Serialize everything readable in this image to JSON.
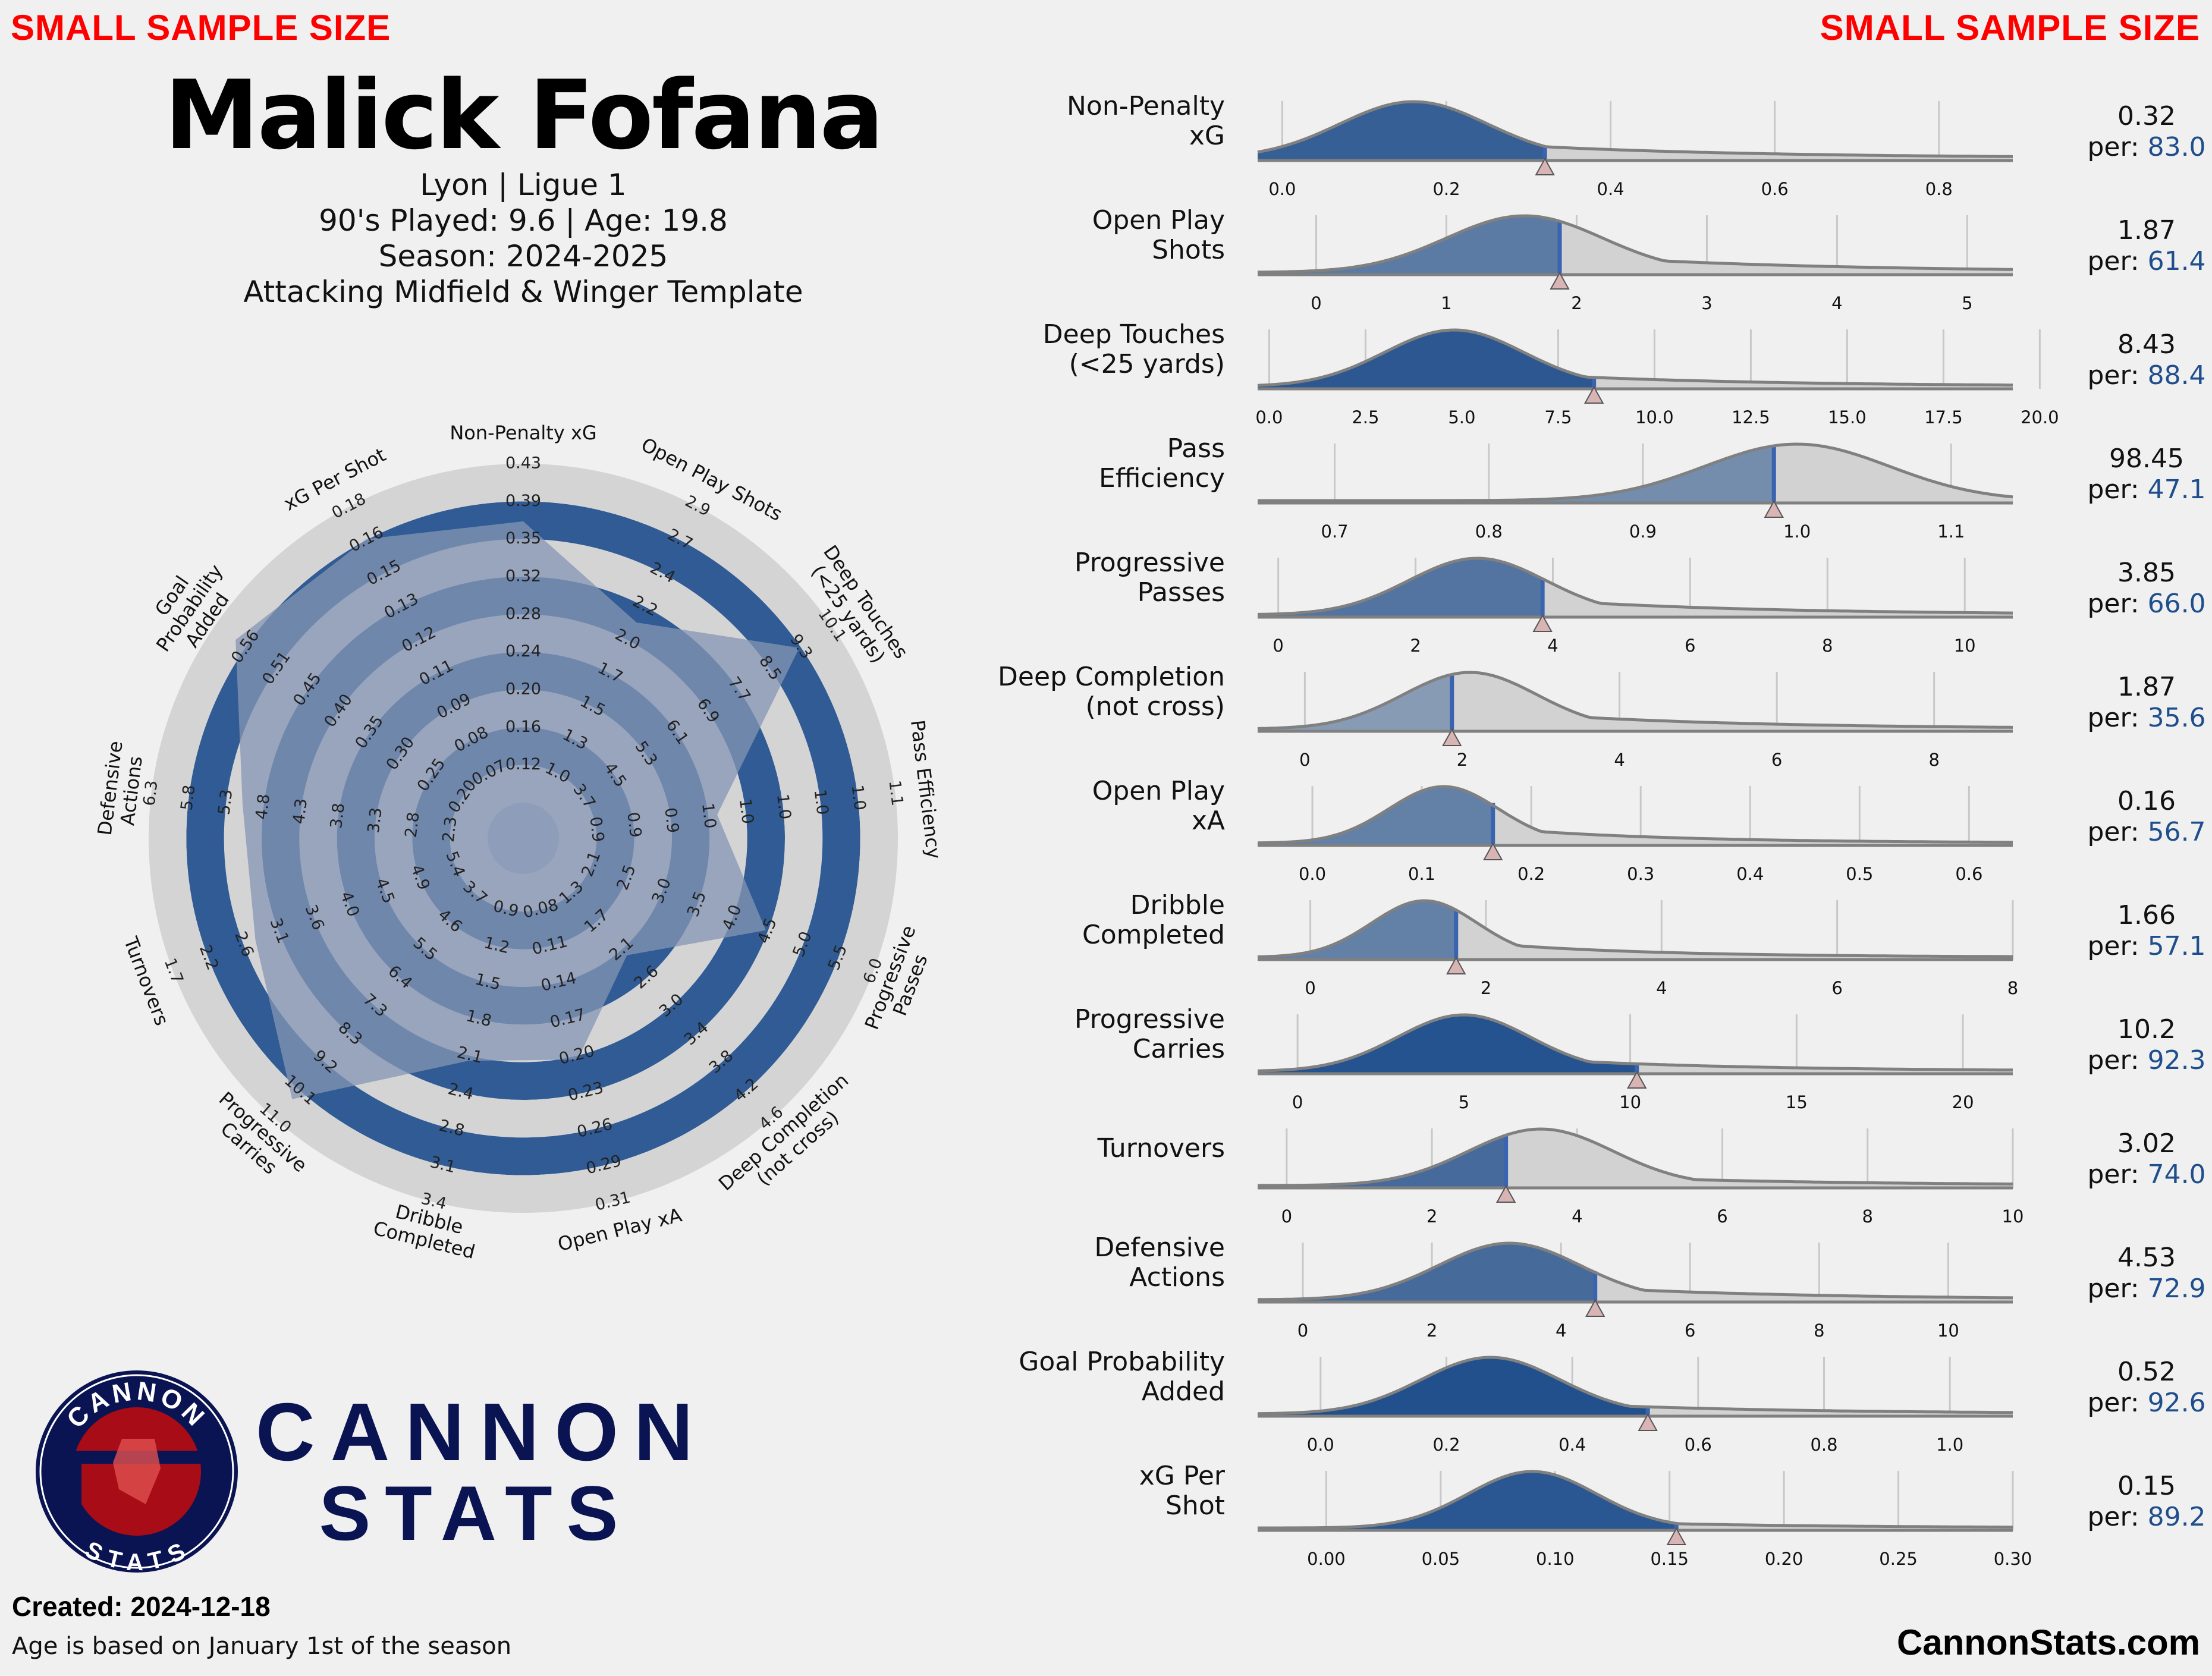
{
  "header": {
    "warning_left": "SMALL SAMPLE SIZE",
    "warning_right": "SMALL SAMPLE SIZE",
    "player_name": "Malick Fofana",
    "team_line": "Lyon | Ligue 1",
    "played_line": "90's Played: 9.6 | Age: 19.8",
    "season_line": "Season: 2024-2025",
    "template_line": "Attacking Midfield & Winger Template"
  },
  "footer": {
    "created": "Created: 2024-12-18",
    "age_note": "Age is based on January 1st of the season",
    "site": "CannonStats.com",
    "brand_line1": "CANNON",
    "brand_line2": "STATS",
    "logo_top": "CANNON",
    "logo_bottom": "STATS"
  },
  "colors": {
    "background": "#f0f0f0",
    "accent_blue": "#1f4e8c",
    "shade_blue": "#3465a4",
    "grey_ring": "#d4d4d4",
    "warning": "#ff0000",
    "brand": "#0b1452",
    "logo_red": "#a80c16"
  },
  "chart_data": [
    {
      "type": "radar",
      "axes": [
        {
          "label": "Non-Penalty xG",
          "ticks": [
            "0.12",
            "0.16",
            "0.20",
            "0.24",
            "0.28",
            "0.32",
            "0.35",
            "0.39",
            "0.43"
          ],
          "percentile": 83.0
        },
        {
          "label": "Open Play Shots",
          "ticks": [
            "1.0",
            "1.3",
            "1.5",
            "1.7",
            "2.0",
            "2.2",
            "2.4",
            "2.7",
            "2.9"
          ],
          "percentile": 61.4
        },
        {
          "label": "Deep Touches\n(<25 yards)",
          "ticks": [
            "3.7",
            "4.5",
            "5.3",
            "6.1",
            "6.9",
            "7.7",
            "8.5",
            "9.3",
            "10.1"
          ],
          "percentile": 88.4
        },
        {
          "label": "Pass Efficiency",
          "ticks": [
            "0.9",
            "0.9",
            "0.9",
            "1.0",
            "1.0",
            "1.0",
            "1.0",
            "1.0",
            "1.1"
          ],
          "percentile": 47.1
        },
        {
          "label": "Progressive\nPasses",
          "ticks": [
            "2.1",
            "2.5",
            "3.0",
            "3.5",
            "4.0",
            "4.5",
            "5.0",
            "5.5",
            "6.0"
          ],
          "percentile": 66.0
        },
        {
          "label": "Deep Completion\n(not cross)",
          "ticks": [
            "1.3",
            "1.7",
            "2.1",
            "2.6",
            "3.0",
            "3.4",
            "3.8",
            "4.2",
            "4.6"
          ],
          "percentile": 35.6
        },
        {
          "label": "Open Play xA",
          "ticks": [
            "0.08",
            "0.11",
            "0.14",
            "0.17",
            "0.20",
            "0.23",
            "0.26",
            "0.29",
            "0.31"
          ],
          "percentile": 56.7
        },
        {
          "label": "Dribble\nCompleted",
          "ticks": [
            "0.9",
            "1.2",
            "1.5",
            "1.8",
            "2.1",
            "2.4",
            "2.8",
            "3.1",
            "3.4"
          ],
          "percentile": 57.1
        },
        {
          "label": "Progressive\nCarries",
          "ticks": [
            "3.7",
            "4.6",
            "5.5",
            "6.4",
            "7.3",
            "8.3",
            "9.2",
            "10.1",
            "11.0"
          ],
          "percentile": 92.3
        },
        {
          "label": "Turnovers",
          "ticks": [
            "5.4",
            "4.9",
            "4.5",
            "4.0",
            "3.6",
            "3.1",
            "2.6",
            "2.2",
            "1.7"
          ],
          "percentile": 74.0
        },
        {
          "label": "Defensive\nActions",
          "ticks": [
            "2.3",
            "2.8",
            "3.3",
            "3.8",
            "4.3",
            "4.8",
            "5.3",
            "5.8",
            "6.3"
          ],
          "percentile": 72.9
        },
        {
          "label": "Goal\nProbability\nAdded",
          "ticks": [
            "0.20",
            "0.25",
            "0.30",
            "0.35",
            "0.40",
            "0.45",
            "0.51",
            "0.56"
          ],
          "percentile": 92.6
        },
        {
          "label": "xG Per Shot",
          "ticks": [
            "0.07",
            "0.08",
            "0.09",
            "0.11",
            "0.12",
            "0.13",
            "0.15",
            "0.16",
            "0.18"
          ],
          "percentile": 89.2
        }
      ]
    },
    {
      "type": "area",
      "rows": [
        {
          "label": "Non-Penalty\nxG",
          "value": "0.32",
          "pct_label": "per:",
          "pct": "83.0",
          "v": 0.32,
          "xmin": -0.03,
          "xmax": 0.89,
          "ticks": [
            0.0,
            0.2,
            0.4,
            0.6,
            0.8
          ],
          "tick_labels": [
            "0.0",
            "0.2",
            "0.4",
            "0.6",
            "0.8"
          ],
          "peak": 0.16,
          "spread": 0.09,
          "tail": 0.35
        },
        {
          "label": "Open Play\nShots",
          "value": "1.87",
          "pct_label": "per:",
          "pct": "61.4",
          "v": 1.87,
          "xmin": -0.45,
          "xmax": 5.35,
          "ticks": [
            0,
            1,
            2,
            3,
            4,
            5
          ],
          "tick_labels": [
            "0",
            "1",
            "2",
            "3",
            "4",
            "5"
          ],
          "peak": 1.6,
          "spread": 0.6,
          "tail": 0.35
        },
        {
          "label": "Deep Touches\n(<25 yards)",
          "value": "8.43",
          "pct_label": "per:",
          "pct": "88.4",
          "v": 8.43,
          "xmin": -0.3,
          "xmax": 19.3,
          "ticks": [
            0.0,
            2.5,
            5.0,
            7.5,
            10.0,
            12.5,
            15.0,
            17.5,
            20.0
          ],
          "tick_labels": [
            "0.0",
            "2.5",
            "5.0",
            "7.5",
            "10.0",
            "12.5",
            "15.0",
            "17.5",
            "20.0"
          ],
          "peak": 4.8,
          "spread": 1.8,
          "tail": 0.3
        },
        {
          "label": "Pass\nEfficiency",
          "value": "98.45",
          "pct_label": "per:",
          "pct": "47.1",
          "v": 0.985,
          "xmin": 0.65,
          "xmax": 1.14,
          "ticks": [
            0.7,
            0.8,
            0.9,
            1.0,
            1.1
          ],
          "tick_labels": [
            "0.7",
            "0.8",
            "0.9",
            "1.0",
            "1.1"
          ],
          "peak": 1.0,
          "spread": 0.06,
          "tail": 0.0
        },
        {
          "label": "Progressive\nPasses",
          "value": "3.85",
          "pct_label": "per:",
          "pct": "66.0",
          "v": 3.85,
          "xmin": -0.3,
          "xmax": 10.7,
          "ticks": [
            0,
            2,
            4,
            6,
            8,
            10
          ],
          "tick_labels": [
            "0",
            "2",
            "4",
            "6",
            "8",
            "10"
          ],
          "peak": 2.9,
          "spread": 1.0,
          "tail": 0.35
        },
        {
          "label": "Deep Completion\n(not cross)",
          "value": "1.87",
          "pct_label": "per:",
          "pct": "35.6",
          "v": 1.87,
          "xmin": -0.6,
          "xmax": 9.0,
          "ticks": [
            0,
            2,
            4,
            6,
            8
          ],
          "tick_labels": [
            "0",
            "2",
            "4",
            "6",
            "8"
          ],
          "peak": 2.1,
          "spread": 0.85,
          "tail": 0.35
        },
        {
          "label": "Open Play\nxA",
          "value": "0.16",
          "pct_label": "per:",
          "pct": "56.7",
          "v": 0.165,
          "xmin": -0.05,
          "xmax": 0.64,
          "ticks": [
            0.0,
            0.1,
            0.2,
            0.3,
            0.4,
            0.5,
            0.6
          ],
          "tick_labels": [
            "0.0",
            "0.1",
            "0.2",
            "0.3",
            "0.4",
            "0.5",
            "0.6"
          ],
          "peak": 0.12,
          "spread": 0.05,
          "tail": 0.35
        },
        {
          "label": "Dribble\nCompleted",
          "value": "1.66",
          "pct_label": "per:",
          "pct": "57.1",
          "v": 1.66,
          "xmin": -0.6,
          "xmax": 8.0,
          "ticks": [
            0,
            2,
            4,
            6,
            8
          ],
          "tick_labels": [
            "0",
            "2",
            "4",
            "6",
            "8"
          ],
          "peak": 1.3,
          "spread": 0.6,
          "tail": 0.35
        },
        {
          "label": "Progressive\nCarries",
          "value": "10.2",
          "pct_label": "per:",
          "pct": "92.3",
          "v": 10.2,
          "xmin": -1.2,
          "xmax": 21.5,
          "ticks": [
            0,
            5,
            10,
            15,
            20
          ],
          "tick_labels": [
            "0",
            "5",
            "10",
            "15",
            "20"
          ],
          "peak": 5.0,
          "spread": 2.0,
          "tail": 0.3
        },
        {
          "label": "Turnovers",
          "value": "3.02",
          "pct_label": "per:",
          "pct": "74.0",
          "v": 3.02,
          "xmin": -0.4,
          "xmax": 10.0,
          "ticks": [
            0,
            2,
            4,
            6,
            8,
            10
          ],
          "tick_labels": [
            "0",
            "2",
            "4",
            "6",
            "8",
            "10"
          ],
          "peak": 3.5,
          "spread": 1.0,
          "tail": 0.2
        },
        {
          "label": "Defensive\nActions",
          "value": "4.53",
          "pct_label": "per:",
          "pct": "72.9",
          "v": 4.53,
          "xmin": -0.7,
          "xmax": 11.0,
          "ticks": [
            0,
            2,
            4,
            6,
            8,
            10
          ],
          "tick_labels": [
            "0",
            "2",
            "4",
            "6",
            "8",
            "10"
          ],
          "peak": 3.2,
          "spread": 1.1,
          "tail": 0.3
        },
        {
          "label": "Goal Probability\nAdded",
          "value": "0.52",
          "pct_label": "per:",
          "pct": "92.6",
          "v": 0.52,
          "xmin": -0.1,
          "xmax": 1.1,
          "ticks": [
            0.0,
            0.2,
            0.4,
            0.6,
            0.8,
            1.0
          ],
          "tick_labels": [
            "0.0",
            "0.2",
            "0.4",
            "0.6",
            "0.8",
            "1.0"
          ],
          "peak": 0.27,
          "spread": 0.11,
          "tail": 0.25
        },
        {
          "label": "xG Per\nShot",
          "value": "0.15",
          "pct_label": "per:",
          "pct": "89.2",
          "v": 0.153,
          "xmin": -0.03,
          "xmax": 0.3,
          "ticks": [
            0.0,
            0.05,
            0.1,
            0.15,
            0.2,
            0.25,
            0.3
          ],
          "tick_labels": [
            "0.00",
            "0.05",
            "0.10",
            "0.15",
            "0.20",
            "0.25",
            "0.30"
          ],
          "peak": 0.09,
          "spread": 0.028,
          "tail": 0.15
        }
      ]
    }
  ]
}
